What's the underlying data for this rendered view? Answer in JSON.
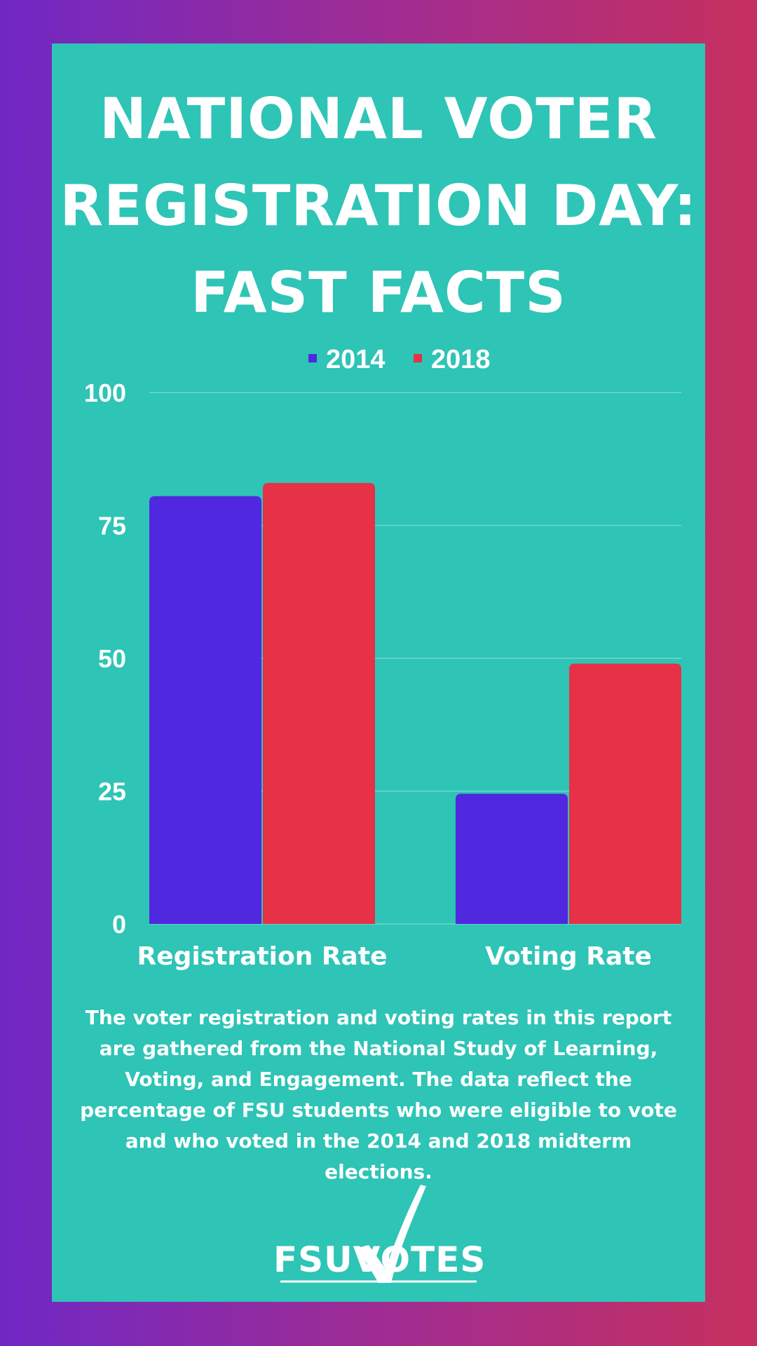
{
  "page": {
    "title_lines": [
      "NATIONAL VOTER",
      "REGISTRATION DAY:",
      "FAST FACTS"
    ],
    "note": "The voter registration and voting rates in this report are gathered from the National Study of Learning, Voting, and Engagement. The data reflect the percentage of FSU students who were eligible to vote and who voted in the 2014 and 2018 midterm elections.",
    "logo_text": "FSUVOTES"
  },
  "colors": {
    "background": "#2ec4b6",
    "series_2014": "#5028e0",
    "series_2018": "#e63146",
    "gridline": "#6fd8cc",
    "text": "#ffffff"
  },
  "chart_data": {
    "type": "bar",
    "categories": [
      "Registration Rate",
      "Voting Rate"
    ],
    "series": [
      {
        "name": "2014",
        "values": [
          80.5,
          24.5
        ]
      },
      {
        "name": "2018",
        "values": [
          83,
          49
        ]
      }
    ],
    "ylim": [
      0,
      100
    ],
    "yticks": [
      0,
      25,
      50,
      75,
      100
    ],
    "grid": true,
    "legend": "top-center"
  }
}
